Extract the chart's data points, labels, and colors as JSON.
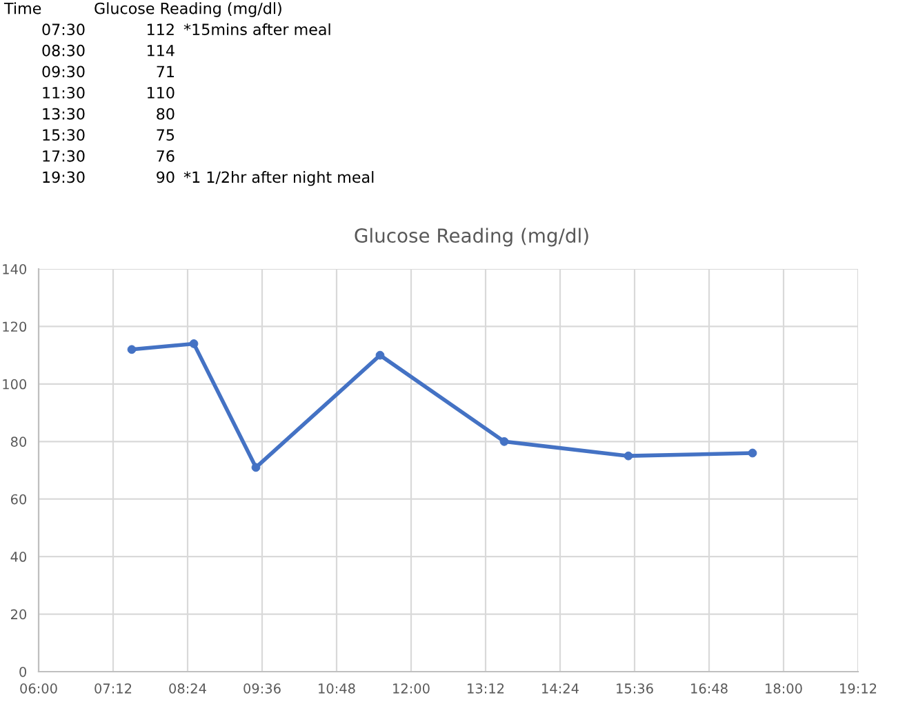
{
  "chart_data": {
    "type": "line",
    "title": "Glucose Reading (mg/dl)",
    "x": [
      7.5,
      8.5,
      9.5,
      11.5,
      13.5,
      15.5,
      17.5
    ],
    "series": [
      {
        "color": "#4472c4",
        "values": [
          112,
          114,
          71,
          110,
          80,
          75,
          76
        ]
      }
    ],
    "xlim": [
      6,
      19.2
    ],
    "xticks": [
      {
        "value": 6,
        "label": "06:00"
      },
      {
        "value": 7.2,
        "label": "07:12"
      },
      {
        "value": 8.4,
        "label": "08:24"
      },
      {
        "value": 9.6,
        "label": "09:36"
      },
      {
        "value": 10.8,
        "label": "10:48"
      },
      {
        "value": 12,
        "label": "12:00"
      },
      {
        "value": 13.2,
        "label": "13:12"
      },
      {
        "value": 14.4,
        "label": "14:24"
      },
      {
        "value": 15.6,
        "label": "15:36"
      },
      {
        "value": 16.8,
        "label": "16:48"
      },
      {
        "value": 18,
        "label": "18:00"
      },
      {
        "value": 19.2,
        "label": "19:12"
      }
    ],
    "ylim": [
      0,
      140
    ],
    "yticks": [
      0,
      20,
      40,
      60,
      80,
      100,
      120,
      140
    ],
    "grid": true,
    "marker": "circle",
    "line_style": "solid",
    "legend": false,
    "annotations": [
      "Time\tGlucose Reading (mg/dl)",
      "07:30\t112\t*15mins after meal",
      "08:30\t114",
      "09:30\t71",
      "11:30\t110",
      "13:30\t80",
      "15:30\t75",
      "17:30\t76",
      "19:30\t90\t*1 1/2hr after night meal"
    ]
  }
}
